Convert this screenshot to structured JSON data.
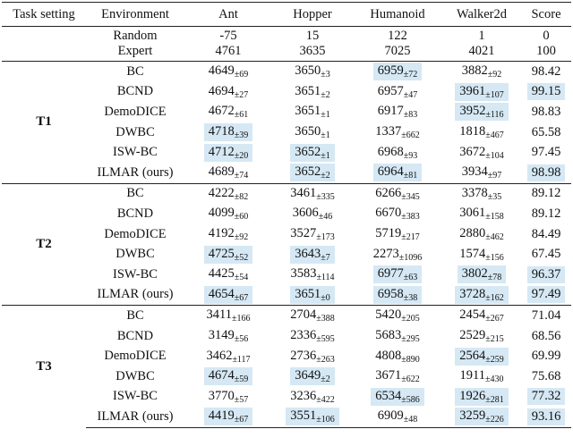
{
  "header": [
    "Task setting",
    "Environment",
    "Ant",
    "Hopper",
    "Humanoid",
    "Walker2d",
    "Score"
  ],
  "baselines": [
    {
      "label": "Random",
      "values": [
        "-75",
        "15",
        "122",
        "1",
        "0"
      ]
    },
    {
      "label": "Expert",
      "values": [
        "4761",
        "3635",
        "7025",
        "4021",
        "100"
      ]
    }
  ],
  "groups": [
    {
      "task": "T1",
      "rows": [
        {
          "method": "BC",
          "cells": [
            {
              "value": "4649",
              "std": "±69"
            },
            {
              "value": "3650",
              "std": "±3"
            },
            {
              "value": "6959",
              "std": "±72",
              "hl": true
            },
            {
              "value": "3882",
              "std": "±92"
            }
          ],
          "score": {
            "value": "98.42"
          }
        },
        {
          "method": "BCND",
          "cells": [
            {
              "value": "4694",
              "std": "±27"
            },
            {
              "value": "3651",
              "std": "±2"
            },
            {
              "value": "6957",
              "std": "±47"
            },
            {
              "value": "3961",
              "std": "±107",
              "hl": true
            }
          ],
          "score": {
            "value": "99.15",
            "hl": true
          }
        },
        {
          "method": "DemoDICE",
          "cells": [
            {
              "value": "4672",
              "std": "±61"
            },
            {
              "value": "3651",
              "std": "±1"
            },
            {
              "value": "6917",
              "std": "±83"
            },
            {
              "value": "3952",
              "std": "±116",
              "hl": true
            }
          ],
          "score": {
            "value": "98.83"
          }
        },
        {
          "method": "DWBC",
          "cells": [
            {
              "value": "4718",
              "std": "±39",
              "hl": true
            },
            {
              "value": "3650",
              "std": "±1"
            },
            {
              "value": "1337",
              "std": "±662"
            },
            {
              "value": "1818",
              "std": "±467"
            }
          ],
          "score": {
            "value": "65.58"
          }
        },
        {
          "method": "ISW-BC",
          "cells": [
            {
              "value": "4712",
              "std": "±20",
              "hl": true
            },
            {
              "value": "3652",
              "std": "±1",
              "hl": true
            },
            {
              "value": "6968",
              "std": "±93"
            },
            {
              "value": "3672",
              "std": "±104"
            }
          ],
          "score": {
            "value": "97.45"
          }
        },
        {
          "method": "ILMAR (ours)",
          "cells": [
            {
              "value": "4689",
              "std": "±74"
            },
            {
              "value": "3652",
              "std": "±2",
              "hl": true
            },
            {
              "value": "6964",
              "std": "±81",
              "hl": true
            },
            {
              "value": "3934",
              "std": "±97"
            }
          ],
          "score": {
            "value": "98.98",
            "hl": true
          }
        }
      ]
    },
    {
      "task": "T2",
      "rows": [
        {
          "method": "BC",
          "cells": [
            {
              "value": "4222",
              "std": "±82"
            },
            {
              "value": "3461",
              "std": "±335"
            },
            {
              "value": "6266",
              "std": "±345"
            },
            {
              "value": "3378",
              "std": "±35"
            }
          ],
          "score": {
            "value": "89.12"
          }
        },
        {
          "method": "BCND",
          "cells": [
            {
              "value": "4099",
              "std": "±60"
            },
            {
              "value": "3606",
              "std": "±46"
            },
            {
              "value": "6670",
              "std": "±383"
            },
            {
              "value": "3061",
              "std": "±158"
            }
          ],
          "score": {
            "value": "89.12"
          }
        },
        {
          "method": "DemoDICE",
          "cells": [
            {
              "value": "4192",
              "std": "±92"
            },
            {
              "value": "3527",
              "std": "±173"
            },
            {
              "value": "5719",
              "std": "±217"
            },
            {
              "value": "2880",
              "std": "±462"
            }
          ],
          "score": {
            "value": "84.49"
          }
        },
        {
          "method": "DWBC",
          "cells": [
            {
              "value": "4725",
              "std": "±52",
              "hl": true
            },
            {
              "value": "3643",
              "std": "±7",
              "hl": true
            },
            {
              "value": "2273",
              "std": "±1096"
            },
            {
              "value": "1574",
              "std": "±156"
            }
          ],
          "score": {
            "value": "67.45"
          }
        },
        {
          "method": "ISW-BC",
          "cells": [
            {
              "value": "4425",
              "std": "±54"
            },
            {
              "value": "3583",
              "std": "±114"
            },
            {
              "value": "6977",
              "std": "±63",
              "hl": true
            },
            {
              "value": "3802",
              "std": "±78",
              "hl": true
            }
          ],
          "score": {
            "value": "96.37",
            "hl": true
          }
        },
        {
          "method": "ILMAR (ours)",
          "cells": [
            {
              "value": "4654",
              "std": "±67",
              "hl": true
            },
            {
              "value": "3651",
              "std": "±0",
              "hl": true
            },
            {
              "value": "6958",
              "std": "±38",
              "hl": true
            },
            {
              "value": "3728",
              "std": "±162",
              "hl": true
            }
          ],
          "score": {
            "value": "97.49",
            "hl": true
          }
        }
      ]
    },
    {
      "task": "T3",
      "rows": [
        {
          "method": "BC",
          "cells": [
            {
              "value": "3411",
              "std": "±166"
            },
            {
              "value": "2704",
              "std": "±388"
            },
            {
              "value": "5420",
              "std": "±205"
            },
            {
              "value": "2454",
              "std": "±267"
            }
          ],
          "score": {
            "value": "71.04"
          }
        },
        {
          "method": "BCND",
          "cells": [
            {
              "value": "3149",
              "std": "±56"
            },
            {
              "value": "2336",
              "std": "±595"
            },
            {
              "value": "5683",
              "std": "±295"
            },
            {
              "value": "2529",
              "std": "±215"
            }
          ],
          "score": {
            "value": "68.56"
          }
        },
        {
          "method": "DemoDICE",
          "cells": [
            {
              "value": "3462",
              "std": "±117"
            },
            {
              "value": "2736",
              "std": "±263"
            },
            {
              "value": "4808",
              "std": "±890"
            },
            {
              "value": "2564",
              "std": "±259",
              "hl": true
            }
          ],
          "score": {
            "value": "69.99"
          }
        },
        {
          "method": "DWBC",
          "cells": [
            {
              "value": "4674",
              "std": "±59",
              "hl": true
            },
            {
              "value": "3649",
              "std": "±2",
              "hl": true
            },
            {
              "value": "3671",
              "std": "±622"
            },
            {
              "value": "1911",
              "std": "±430"
            }
          ],
          "score": {
            "value": "75.68"
          }
        },
        {
          "method": "ISW-BC",
          "cells": [
            {
              "value": "3770",
              "std": "±57"
            },
            {
              "value": "3236",
              "std": "±422"
            },
            {
              "value": "6534",
              "std": "±586",
              "hl": true
            },
            {
              "value": "1926",
              "std": "±281",
              "hl": true
            }
          ],
          "score": {
            "value": "77.32",
            "hl": true
          }
        },
        {
          "method": "ILMAR (ours)",
          "cells": [
            {
              "value": "4419",
              "std": "±67",
              "hl": true
            },
            {
              "value": "3551",
              "std": "±106",
              "hl": true
            },
            {
              "value": "6909",
              "std": "±48"
            },
            {
              "value": "3259",
              "std": "±226",
              "hl": true
            }
          ],
          "score": {
            "value": "93.16",
            "hl": true
          }
        }
      ]
    }
  ]
}
